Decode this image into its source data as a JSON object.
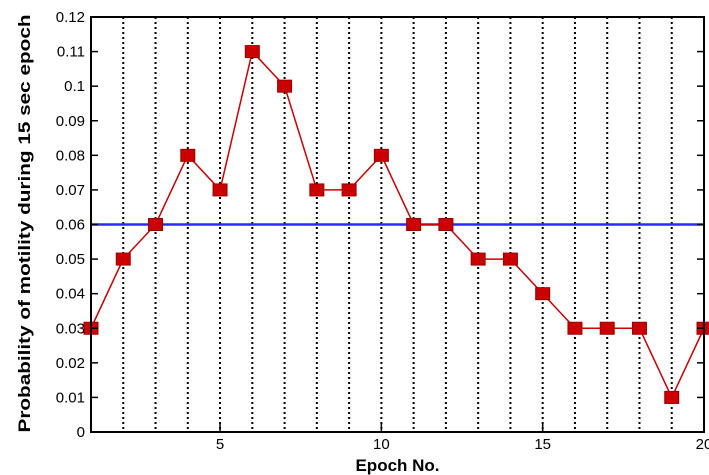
{
  "chart_data": {
    "type": "line",
    "xlabel": "Epoch No.",
    "ylabel": "Probability of motility during 15 sec epoch",
    "xlim": [
      1,
      20
    ],
    "ylim": [
      0,
      0.12
    ],
    "x_ticks": [
      5,
      10,
      15,
      20
    ],
    "y_ticks": [
      0,
      0.01,
      0.02,
      0.03,
      0.04,
      0.05,
      0.06,
      0.07,
      0.08,
      0.09,
      0.1,
      0.11,
      0.12
    ],
    "vertical_gridlines_at": [
      2,
      3,
      4,
      5,
      6,
      7,
      8,
      9,
      10,
      11,
      12,
      13,
      14,
      15,
      16,
      17,
      18,
      19
    ],
    "grid": "vertical dotted",
    "series": [
      {
        "x": [
          1,
          2,
          3,
          4,
          5,
          6,
          7,
          8,
          9,
          10,
          11,
          12,
          13,
          14,
          15,
          16,
          17,
          18,
          19,
          20
        ],
        "values": [
          0.03,
          0.05,
          0.06,
          0.08,
          0.07,
          0.11,
          0.1,
          0.07,
          0.07,
          0.08,
          0.06,
          0.06,
          0.05,
          0.05,
          0.04,
          0.03,
          0.03,
          0.03,
          0.01,
          0.03
        ],
        "color": "#cc0000",
        "marker": "square"
      }
    ],
    "reference_line": {
      "y": 0.06,
      "color": "#2a2aff"
    }
  }
}
